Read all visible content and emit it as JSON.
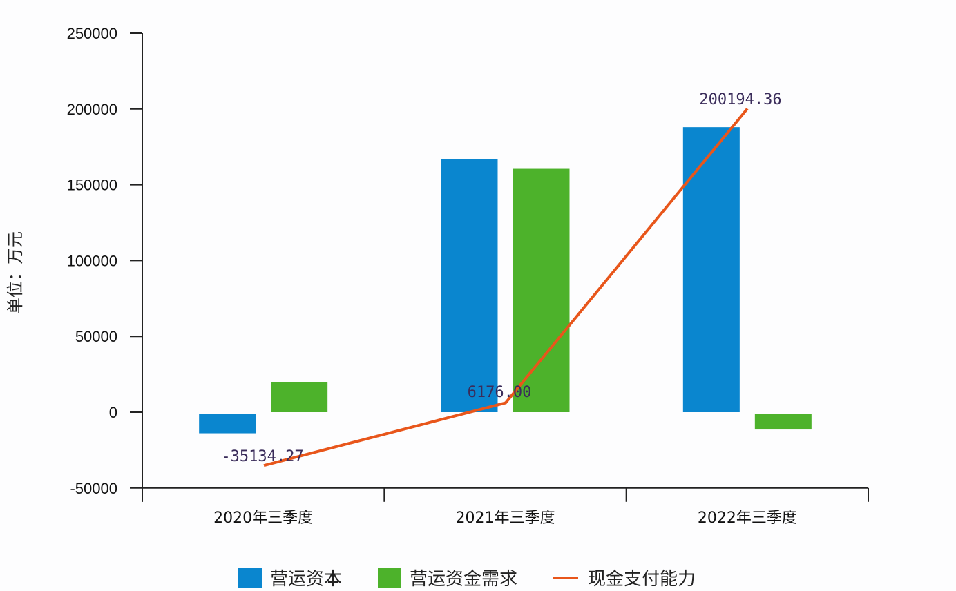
{
  "chart_data": {
    "type": "bar",
    "title": "",
    "xlabel": "",
    "ylabel": "单位：万元",
    "ylim": [
      -50000,
      250000
    ],
    "yticks": [
      250000,
      200000,
      150000,
      100000,
      50000,
      0,
      -50000
    ],
    "ytick_labels": [
      "250000",
      "200000",
      "150000",
      "100000",
      "50000",
      "0",
      "-50000"
    ],
    "categories": [
      "2020年三季度",
      "2021年三季度",
      "2022年三季度"
    ],
    "series": [
      {
        "name": "营运资本",
        "type": "bar",
        "color": "#0a86cf",
        "values": [
          -13000,
          167000,
          188000
        ]
      },
      {
        "name": "营运资金需求",
        "type": "bar",
        "color": "#4db22b",
        "values": [
          20000,
          160500,
          -10500
        ]
      },
      {
        "name": "现金支付能力",
        "type": "line",
        "color": "#e8561b",
        "values": [
          -35134.27,
          6176.0,
          200194.36
        ],
        "data_labels": [
          "-35134.27",
          "6176.00",
          "200194.36"
        ]
      }
    ],
    "grid": false,
    "legend_position": "bottom"
  }
}
